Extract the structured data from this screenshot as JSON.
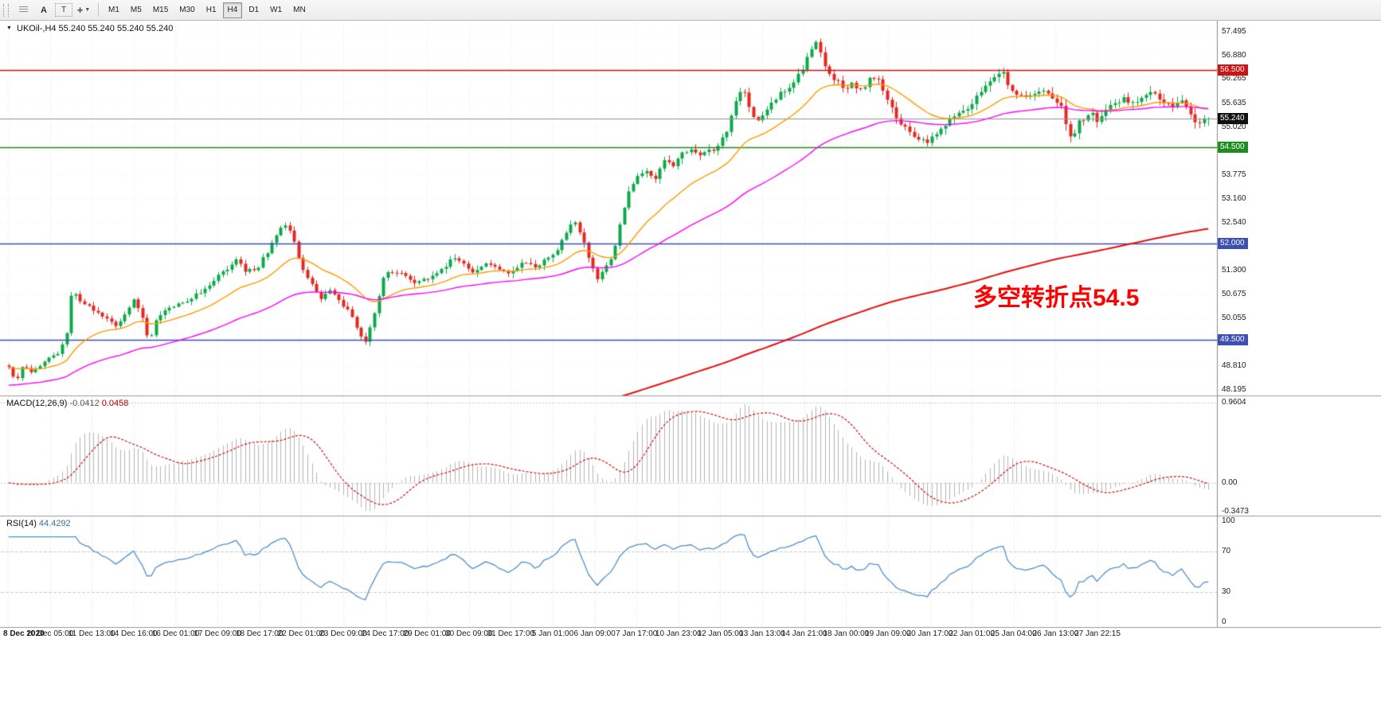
{
  "toolbar": {
    "tools": {
      "text_tool": "A",
      "label_tool": "T"
    },
    "timeframes": [
      "M1",
      "M5",
      "M15",
      "M30",
      "H1",
      "H4",
      "D1",
      "W1",
      "MN"
    ],
    "active_timeframe": "H4"
  },
  "chart": {
    "title": "UKOil-,H4 55.240 55.240 55.240 55.240",
    "annotation": "多空转折点54.5",
    "current_price": "55.240"
  },
  "chart_data": {
    "type": "candlestick",
    "symbol": "UKOil-",
    "timeframe": "H4",
    "ohlc": {
      "open": "55.240",
      "high": "55.240",
      "low": "55.240",
      "close": "55.240"
    },
    "price_axis": {
      "range": [
        48.05,
        57.8
      ],
      "ticks": [
        "57.495",
        "56.880",
        "56.265",
        "55.635",
        "55.020",
        "54.405",
        "53.775",
        "53.160",
        "52.540",
        "51.920",
        "51.300",
        "50.675",
        "50.055",
        "49.435",
        "48.810",
        "48.195"
      ]
    },
    "time_axis": [
      "8 Dec 2020",
      "10 Dec 05:00",
      "11 Dec 13:00",
      "14 Dec 16:00",
      "16 Dec 01:00",
      "17 Dec 09:00",
      "18 Dec 17:00",
      "22 Dec 01:00",
      "23 Dec 09:00",
      "24 Dec 17:00",
      "29 Dec 01:00",
      "30 Dec 09:00",
      "31 Dec 17:00",
      "5 Jan 01:00",
      "6 Jan 09:00",
      "7 Jan 17:00",
      "10 Jan 23:00",
      "12 Jan 05:00",
      "13 Jan 13:00",
      "14 Jan 21:00",
      "18 Jan 00:00",
      "19 Jan 09:00",
      "20 Jan 17:00",
      "22 Jan 01:00",
      "25 Jan 04:00",
      "26 Jan 13:00",
      "27 Jan 22:15"
    ],
    "levels": [
      {
        "price": 56.5,
        "label": "56.500",
        "color": "#cc1414",
        "type": "resistance"
      },
      {
        "price": 54.5,
        "label": "54.500",
        "color": "#1e8c1e",
        "type": "support"
      },
      {
        "price": 52.0,
        "label": "52.000",
        "color": "#3c50b4",
        "type": "support"
      },
      {
        "price": 49.5,
        "label": "49.500",
        "color": "#3c50b4",
        "type": "support"
      },
      {
        "price": 55.24,
        "label": "55.240",
        "color": "#909090",
        "badge": "#101010",
        "type": "current"
      }
    ],
    "candles": {
      "count": 270,
      "bull_color": "#0ca94a",
      "bear_color": "#e4281e",
      "close_anchors": [
        [
          0.0,
          48.75
        ],
        [
          0.006,
          48.4
        ],
        [
          0.012,
          48.85
        ],
        [
          0.02,
          48.65
        ],
        [
          0.03,
          48.95
        ],
        [
          0.04,
          49.1
        ],
        [
          0.048,
          49.6
        ],
        [
          0.053,
          50.85
        ],
        [
          0.06,
          50.45
        ],
        [
          0.07,
          50.3
        ],
        [
          0.08,
          50.05
        ],
        [
          0.09,
          49.85
        ],
        [
          0.098,
          50.2
        ],
        [
          0.105,
          50.55
        ],
        [
          0.112,
          50.0
        ],
        [
          0.117,
          49.45
        ],
        [
          0.123,
          50.05
        ],
        [
          0.132,
          50.3
        ],
        [
          0.145,
          50.45
        ],
        [
          0.158,
          50.7
        ],
        [
          0.17,
          51.0
        ],
        [
          0.18,
          51.3
        ],
        [
          0.19,
          51.55
        ],
        [
          0.198,
          51.25
        ],
        [
          0.208,
          51.4
        ],
        [
          0.218,
          51.9
        ],
        [
          0.226,
          52.35
        ],
        [
          0.233,
          52.45
        ],
        [
          0.239,
          51.9
        ],
        [
          0.245,
          51.3
        ],
        [
          0.252,
          50.95
        ],
        [
          0.26,
          50.6
        ],
        [
          0.268,
          50.75
        ],
        [
          0.276,
          50.45
        ],
        [
          0.284,
          50.2
        ],
        [
          0.291,
          49.75
        ],
        [
          0.297,
          49.4
        ],
        [
          0.302,
          49.85
        ],
        [
          0.308,
          50.6
        ],
        [
          0.314,
          51.25
        ],
        [
          0.322,
          51.3
        ],
        [
          0.33,
          51.15
        ],
        [
          0.34,
          50.95
        ],
        [
          0.35,
          51.1
        ],
        [
          0.36,
          51.3
        ],
        [
          0.37,
          51.6
        ],
        [
          0.378,
          51.45
        ],
        [
          0.388,
          51.25
        ],
        [
          0.398,
          51.5
        ],
        [
          0.408,
          51.35
        ],
        [
          0.418,
          51.25
        ],
        [
          0.428,
          51.5
        ],
        [
          0.438,
          51.4
        ],
        [
          0.448,
          51.55
        ],
        [
          0.456,
          51.7
        ],
        [
          0.464,
          52.25
        ],
        [
          0.471,
          52.65
        ],
        [
          0.477,
          52.2
        ],
        [
          0.484,
          51.55
        ],
        [
          0.49,
          51.1
        ],
        [
          0.497,
          51.35
        ],
        [
          0.503,
          51.6
        ],
        [
          0.509,
          52.45
        ],
        [
          0.516,
          53.3
        ],
        [
          0.524,
          53.7
        ],
        [
          0.531,
          53.85
        ],
        [
          0.538,
          53.6
        ],
        [
          0.546,
          54.15
        ],
        [
          0.553,
          54.0
        ],
        [
          0.561,
          54.3
        ],
        [
          0.569,
          54.5
        ],
        [
          0.577,
          54.25
        ],
        [
          0.584,
          54.4
        ],
        [
          0.592,
          54.55
        ],
        [
          0.599,
          54.95
        ],
        [
          0.606,
          55.7
        ],
        [
          0.612,
          56.05
        ],
        [
          0.617,
          55.6
        ],
        [
          0.623,
          55.15
        ],
        [
          0.63,
          55.45
        ],
        [
          0.638,
          55.75
        ],
        [
          0.646,
          55.95
        ],
        [
          0.654,
          56.2
        ],
        [
          0.662,
          56.55
        ],
        [
          0.669,
          57.1
        ],
        [
          0.674,
          57.35
        ],
        [
          0.679,
          56.7
        ],
        [
          0.685,
          56.35
        ],
        [
          0.692,
          56.2
        ],
        [
          0.698,
          55.95
        ],
        [
          0.703,
          56.2
        ],
        [
          0.709,
          55.95
        ],
        [
          0.716,
          56.2
        ],
        [
          0.723,
          56.35
        ],
        [
          0.73,
          55.9
        ],
        [
          0.737,
          55.45
        ],
        [
          0.744,
          55.1
        ],
        [
          0.751,
          54.9
        ],
        [
          0.758,
          54.75
        ],
        [
          0.765,
          54.65
        ],
        [
          0.772,
          54.8
        ],
        [
          0.779,
          55.0
        ],
        [
          0.786,
          55.2
        ],
        [
          0.793,
          55.4
        ],
        [
          0.8,
          55.55
        ],
        [
          0.807,
          55.85
        ],
        [
          0.814,
          56.1
        ],
        [
          0.821,
          56.3
        ],
        [
          0.828,
          56.45
        ],
        [
          0.833,
          56.15
        ],
        [
          0.838,
          55.95
        ],
        [
          0.845,
          55.75
        ],
        [
          0.852,
          55.85
        ],
        [
          0.858,
          56.0
        ],
        [
          0.865,
          55.85
        ],
        [
          0.871,
          55.8
        ],
        [
          0.877,
          55.55
        ],
        [
          0.882,
          54.95
        ],
        [
          0.886,
          54.6
        ],
        [
          0.89,
          55.05
        ],
        [
          0.896,
          55.25
        ],
        [
          0.902,
          55.35
        ],
        [
          0.908,
          55.2
        ],
        [
          0.915,
          55.45
        ],
        [
          0.922,
          55.6
        ],
        [
          0.929,
          55.75
        ],
        [
          0.936,
          55.6
        ],
        [
          0.943,
          55.7
        ],
        [
          0.95,
          55.95
        ],
        [
          0.957,
          55.8
        ],
        [
          0.964,
          55.65
        ],
        [
          0.971,
          55.55
        ],
        [
          0.978,
          55.7
        ],
        [
          0.985,
          55.4
        ],
        [
          0.991,
          55.05
        ],
        [
          1.0,
          55.24
        ]
      ]
    },
    "moving_averages": [
      {
        "name": "fast-ma",
        "color": "#ff9b00"
      },
      {
        "name": "medium-ma",
        "color": "#ff00ff"
      },
      {
        "name": "slow-ma",
        "color": "#e81010"
      }
    ],
    "indicators": [
      {
        "name": "MACD",
        "label": "MACD(12,26,9)",
        "values": [
          "-0.0412",
          "0.0458"
        ],
        "axis_ticks": [
          "0.9604",
          "0.00",
          "-0.3473"
        ],
        "histogram_color": "#b4b4b4",
        "signal_color": "#d01010"
      },
      {
        "name": "RSI",
        "label": "RSI(14)",
        "value": "44.4292",
        "axis_ticks": [
          "100",
          "70",
          "30",
          "0"
        ],
        "levels": [
          70,
          30
        ],
        "line_color": "#4f8fce"
      }
    ]
  }
}
